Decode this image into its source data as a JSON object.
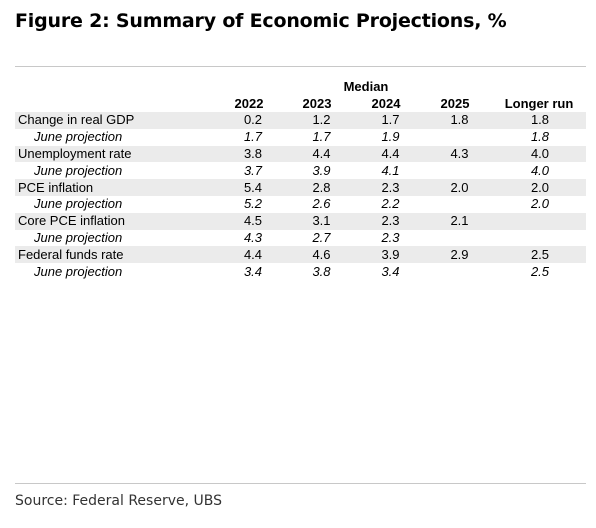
{
  "title": "Figure 2: Summary of Economic Projections, %",
  "header": {
    "group_label": "Median",
    "columns": [
      "2022",
      "2023",
      "2024",
      "2025",
      "Longer run"
    ]
  },
  "rows": [
    {
      "label": "Change in real GDP",
      "values": [
        "0.2",
        "1.2",
        "1.7",
        "1.8",
        "1.8"
      ],
      "kind": "main"
    },
    {
      "label": "June projection",
      "values": [
        "1.7",
        "1.7",
        "1.9",
        "",
        "1.8"
      ],
      "kind": "june"
    },
    {
      "label": "Unemployment rate",
      "values": [
        "3.8",
        "4.4",
        "4.4",
        "4.3",
        "4.0"
      ],
      "kind": "main"
    },
    {
      "label": "June projection",
      "values": [
        "3.7",
        "3.9",
        "4.1",
        "",
        "4.0"
      ],
      "kind": "june"
    },
    {
      "label": "PCE inflation",
      "values": [
        "5.4",
        "2.8",
        "2.3",
        "2.0",
        "2.0"
      ],
      "kind": "main"
    },
    {
      "label": "June projection",
      "values": [
        "5.2",
        "2.6",
        "2.2",
        "",
        "2.0"
      ],
      "kind": "june"
    },
    {
      "label": "Core PCE inflation",
      "values": [
        "4.5",
        "3.1",
        "2.3",
        "2.1",
        ""
      ],
      "kind": "main"
    },
    {
      "label": "June projection",
      "values": [
        "4.3",
        "2.7",
        "2.3",
        "",
        ""
      ],
      "kind": "june"
    },
    {
      "label": "Federal funds rate",
      "values": [
        "4.4",
        "4.6",
        "3.9",
        "2.9",
        "2.5"
      ],
      "kind": "main"
    },
    {
      "label": "June projection",
      "values": [
        "3.4",
        "3.8",
        "3.4",
        "",
        "2.5"
      ],
      "kind": "june"
    }
  ],
  "source": "Source: Federal Reserve, UBS",
  "colors": {
    "row_shade": "#ebebeb",
    "rule": "#c8c8c8"
  }
}
